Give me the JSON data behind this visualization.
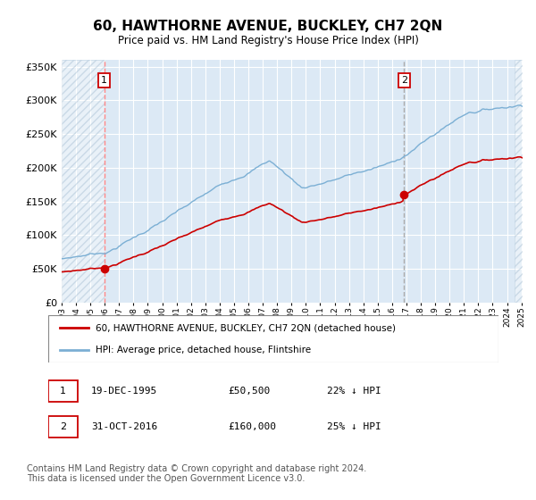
{
  "title": "60, HAWTHORNE AVENUE, BUCKLEY, CH7 2QN",
  "subtitle": "Price paid vs. HM Land Registry's House Price Index (HPI)",
  "title_fontsize": 11,
  "subtitle_fontsize": 9,
  "sale1_date": "1995-12-19",
  "sale1_price": 50500,
  "sale1_label": "1",
  "sale2_date": "2016-10-31",
  "sale2_price": 160000,
  "sale2_label": "2",
  "legend_property": "60, HAWTHORNE AVENUE, BUCKLEY, CH7 2QN (detached house)",
  "legend_hpi": "HPI: Average price, detached house, Flintshire",
  "hpi_color": "#7bafd4",
  "property_color": "#cc0000",
  "vline1_color": "#ff8888",
  "vline2_color": "#aaaaaa",
  "background_color": "#dce9f5",
  "grid_color": "#ffffff",
  "ylim": [
    0,
    360000
  ],
  "yticks": [
    0,
    50000,
    100000,
    150000,
    200000,
    250000,
    300000,
    350000
  ],
  "footer": "Contains HM Land Registry data © Crown copyright and database right 2024.\nThis data is licensed under the Open Government Licence v3.0.",
  "footnote_fontsize": 7
}
